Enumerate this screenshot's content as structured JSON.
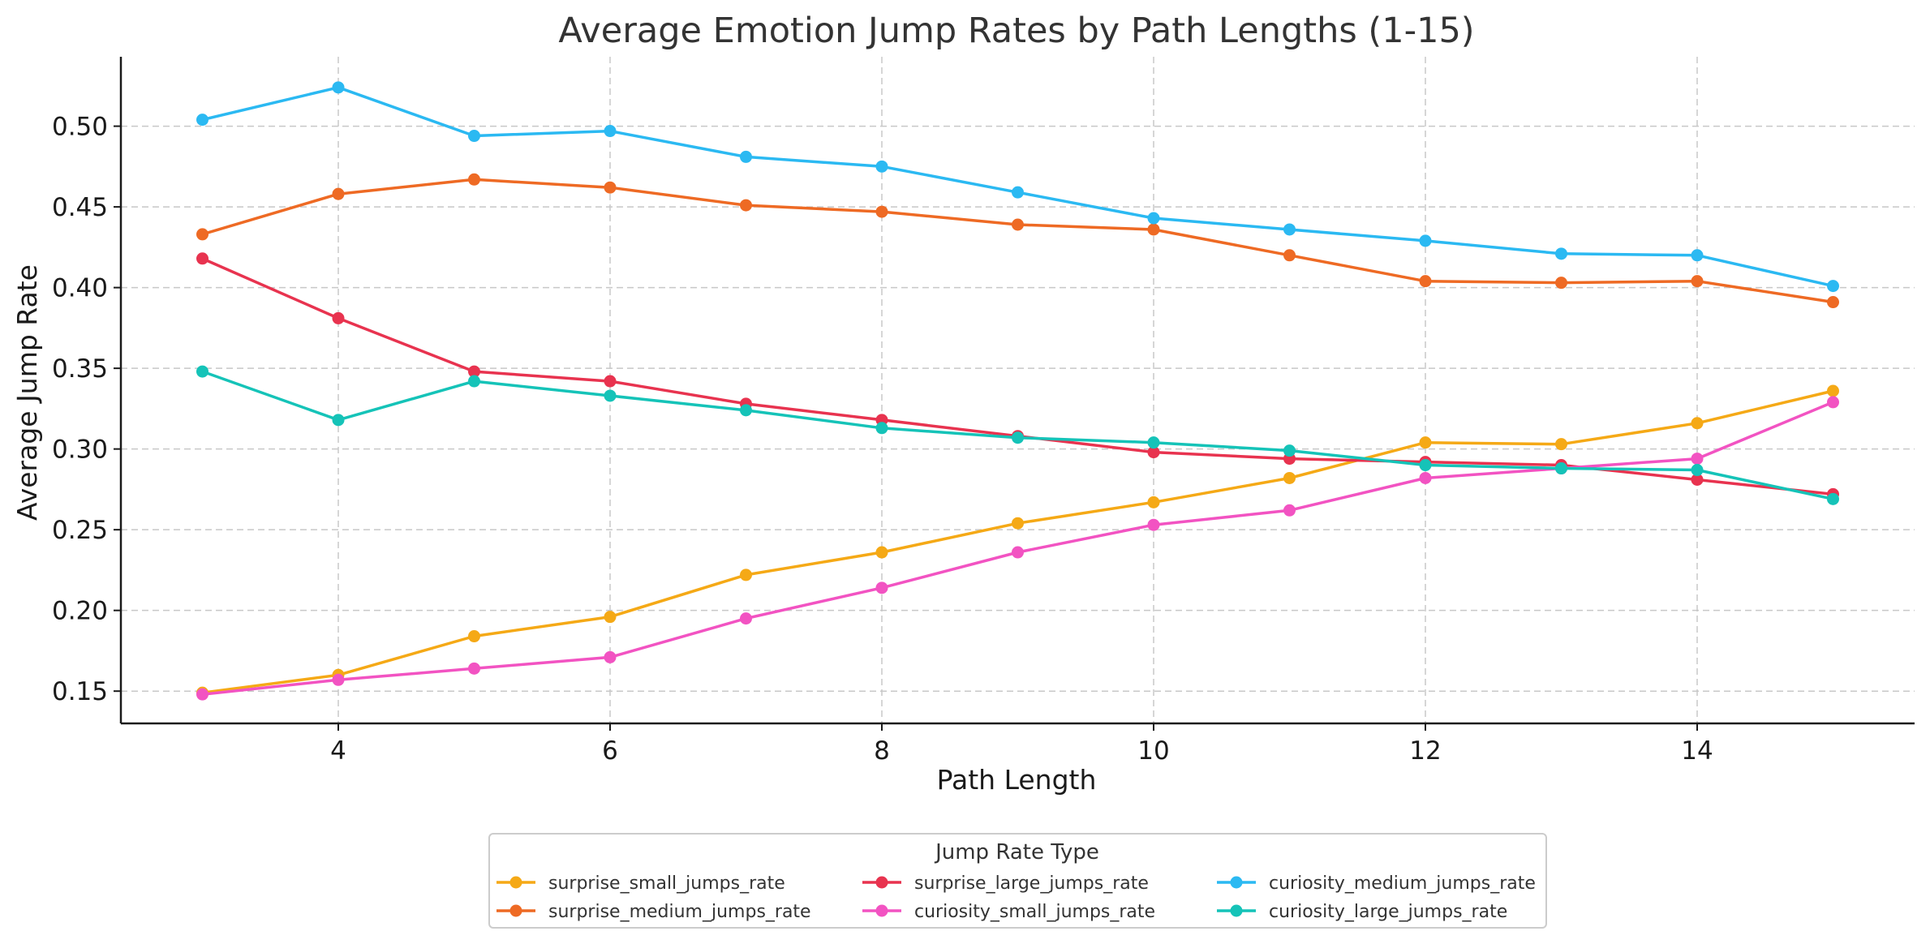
{
  "chart_data": {
    "type": "line",
    "title": "Average Emotion Jump Rates by Path Lengths (1-15)",
    "xlabel": "Path Length",
    "ylabel": "Average Jump Rate",
    "xlim": [
      2.4,
      15.6
    ],
    "ylim": [
      0.13,
      0.543
    ],
    "x_ticks": [
      4,
      6,
      8,
      10,
      12,
      14
    ],
    "y_ticks": [
      0.15,
      0.2,
      0.25,
      0.3,
      0.35,
      0.4,
      0.45,
      0.5
    ],
    "y_tick_labels": [
      "0.15",
      "0.20",
      "0.25",
      "0.30",
      "0.35",
      "0.40",
      "0.45",
      "0.50"
    ],
    "grid": true,
    "legend": {
      "title": "Jump Rate Type",
      "placement": "bottom-center",
      "columns": 3
    },
    "x": [
      3,
      4,
      5,
      6,
      7,
      8,
      9,
      10,
      11,
      12,
      13,
      14,
      15
    ],
    "series": [
      {
        "name": "surprise_small_jumps_rate",
        "color": "#f5a916",
        "values": [
          0.149,
          0.16,
          0.184,
          0.196,
          0.222,
          0.236,
          0.254,
          0.267,
          0.282,
          0.304,
          0.303,
          0.316,
          0.336
        ]
      },
      {
        "name": "surprise_medium_jumps_rate",
        "color": "#ee6a24",
        "values": [
          0.433,
          0.458,
          0.467,
          0.462,
          0.451,
          0.447,
          0.439,
          0.436,
          0.42,
          0.404,
          0.403,
          0.404,
          0.391
        ]
      },
      {
        "name": "surprise_large_jumps_rate",
        "color": "#e8334f",
        "values": [
          0.418,
          0.381,
          0.348,
          0.342,
          0.328,
          0.318,
          0.308,
          0.298,
          0.294,
          0.292,
          0.29,
          0.281,
          0.272
        ]
      },
      {
        "name": "curiosity_small_jumps_rate",
        "color": "#f253c2",
        "values": [
          0.148,
          0.157,
          0.164,
          0.171,
          0.195,
          0.214,
          0.236,
          0.253,
          0.262,
          0.282,
          0.288,
          0.294,
          0.329
        ]
      },
      {
        "name": "curiosity_medium_jumps_rate",
        "color": "#2bb9f2",
        "values": [
          0.504,
          0.524,
          0.494,
          0.497,
          0.481,
          0.475,
          0.459,
          0.443,
          0.436,
          0.429,
          0.421,
          0.42,
          0.401
        ]
      },
      {
        "name": "curiosity_large_jumps_rate",
        "color": "#15c3b8",
        "values": [
          0.348,
          0.318,
          0.342,
          0.333,
          0.324,
          0.313,
          0.307,
          0.304,
          0.299,
          0.29,
          0.288,
          0.287,
          0.269
        ]
      }
    ]
  }
}
